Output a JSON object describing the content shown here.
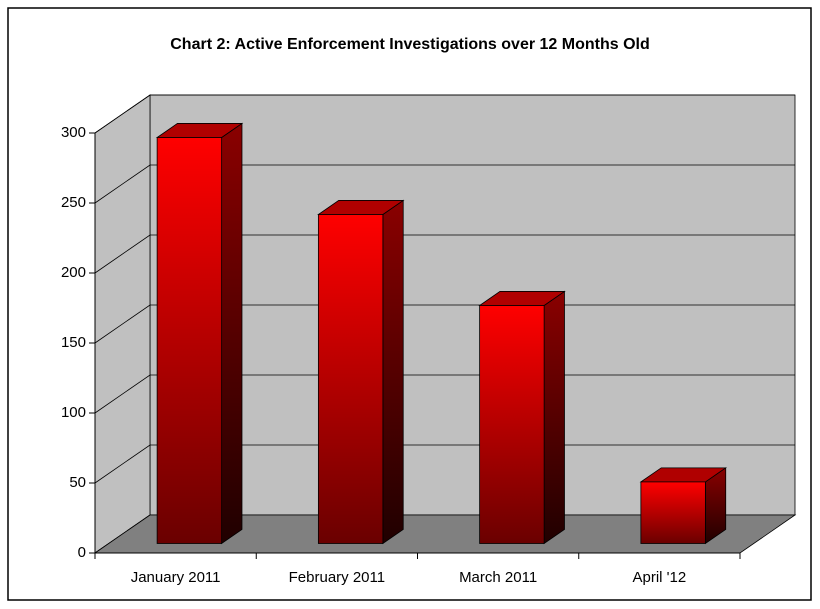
{
  "chart_data": {
    "type": "bar3d",
    "title": "Chart 2: Active Enforcement Investigations over 12 Months Old",
    "categories": [
      "January 2011",
      "February 2011",
      "March 2011",
      "April '12"
    ],
    "values": [
      290,
      235,
      170,
      44
    ],
    "color": "#ff0000",
    "ylim": [
      0,
      300
    ],
    "yticks": [
      0,
      50,
      100,
      150,
      200,
      250,
      300
    ],
    "grid": true
  }
}
